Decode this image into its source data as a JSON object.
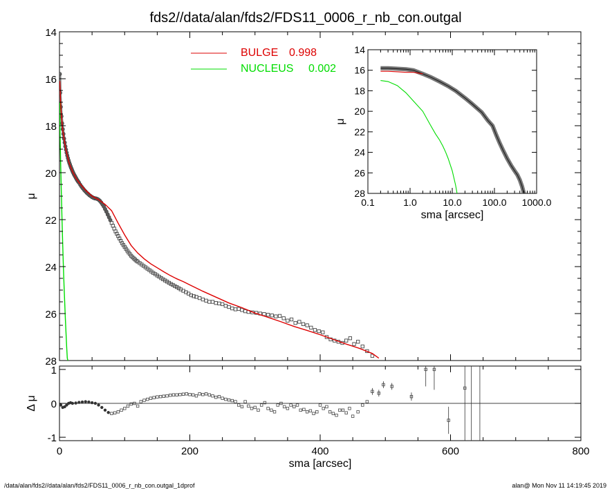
{
  "chart_data": [
    {
      "id": "main-profile",
      "type": "scatter",
      "title": "fds2//data/alan/fds2/FDS11_0006_r_nb_con.outgal",
      "xlabel": "sma [arcsec]",
      "ylabel": "μ",
      "xlim": [
        0,
        800
      ],
      "ylim": [
        28,
        14
      ],
      "xticks": [
        0,
        200,
        400,
        600,
        800
      ],
      "yticks": [
        14,
        16,
        18,
        20,
        22,
        24,
        26,
        28
      ],
      "legend": [
        {
          "name": "BULGE",
          "value": "0.998",
          "color": "#dd0000"
        },
        {
          "name": "NUCLEUS",
          "value": "0.002",
          "color": "#00dd00"
        }
      ],
      "series": [
        {
          "name": "data",
          "style": "open-squares",
          "color": "#555555",
          "x": [
            0.5,
            1,
            2,
            3,
            4,
            5,
            6,
            7,
            8,
            9,
            10,
            11,
            12,
            13,
            14,
            15,
            16,
            17,
            18,
            19,
            20,
            21,
            22,
            23,
            24,
            25,
            26,
            27,
            28,
            29,
            30,
            32,
            34,
            36,
            38,
            40,
            42,
            44,
            46,
            48,
            50,
            52,
            54,
            56,
            58,
            60,
            62,
            64,
            66,
            68,
            70,
            72,
            74,
            76,
            78,
            80,
            82,
            84,
            86,
            88,
            90,
            92,
            94,
            96,
            98,
            100,
            102,
            104,
            106,
            108,
            110,
            112,
            114,
            116,
            118,
            120,
            123,
            126,
            129,
            132,
            135,
            138,
            141,
            144,
            147,
            150,
            153,
            156,
            159,
            162,
            165,
            168,
            171,
            174,
            177,
            180,
            183,
            186,
            190,
            194,
            198,
            202,
            206,
            210,
            215,
            220,
            225,
            230,
            235,
            240,
            245,
            250,
            255,
            260,
            265,
            270,
            275,
            280,
            285,
            290,
            296,
            302,
            308,
            314,
            320,
            326,
            332,
            338,
            344,
            350,
            356,
            362,
            368,
            374,
            380,
            386,
            392,
            398,
            404,
            410,
            416,
            422,
            428,
            434,
            440,
            446,
            452,
            458,
            465,
            472,
            480
          ],
          "y": [
            15.8,
            16.6,
            17.2,
            17.6,
            17.9,
            18.15,
            18.35,
            18.55,
            18.72,
            18.88,
            19.02,
            19.15,
            19.27,
            19.38,
            19.48,
            19.57,
            19.65,
            19.73,
            19.8,
            19.87,
            19.94,
            20.0,
            20.06,
            20.11,
            20.16,
            20.21,
            20.26,
            20.31,
            20.35,
            20.39,
            20.43,
            20.52,
            20.6,
            20.67,
            20.74,
            20.8,
            20.86,
            20.91,
            20.96,
            21.0,
            21.04,
            21.07,
            21.09,
            21.1,
            21.12,
            21.15,
            21.2,
            21.27,
            21.35,
            21.44,
            21.55,
            21.66,
            21.78,
            21.9,
            22.02,
            22.14,
            22.26,
            22.38,
            22.5,
            22.6,
            22.7,
            22.8,
            22.9,
            23.0,
            23.08,
            23.16,
            23.24,
            23.32,
            23.4,
            23.47,
            23.54,
            23.6,
            23.65,
            23.7,
            23.75,
            23.79,
            23.85,
            23.91,
            23.97,
            24.03,
            24.09,
            24.15,
            24.21,
            24.27,
            24.32,
            24.38,
            24.43,
            24.49,
            24.54,
            24.59,
            24.64,
            24.69,
            24.74,
            24.78,
            24.83,
            24.87,
            24.92,
            24.97,
            25.03,
            25.09,
            25.15,
            25.22,
            25.26,
            25.29,
            25.34,
            25.4,
            25.45,
            25.5,
            25.5,
            25.55,
            25.57,
            25.6,
            25.67,
            25.72,
            25.78,
            25.82,
            25.8,
            25.85,
            25.9,
            25.93,
            25.95,
            25.97,
            26.0,
            26.02,
            26.05,
            26.08,
            26.12,
            26.1,
            26.2,
            26.3,
            26.25,
            26.4,
            26.35,
            26.45,
            26.5,
            26.6,
            26.7,
            26.75,
            26.8,
            27.0,
            27.1,
            27.15,
            27.2,
            27.25,
            27.15,
            27.05,
            27.3,
            27.2,
            27.4,
            27.6,
            27.8
          ]
        },
        {
          "name": "BULGE",
          "style": "line",
          "color": "#dd0000",
          "x": [
            0.5,
            2,
            5,
            10,
            15,
            20,
            25,
            30,
            40,
            50,
            60,
            70,
            80,
            90,
            100,
            110,
            120,
            130,
            140,
            150,
            160,
            170,
            180,
            190,
            200,
            220,
            240,
            260,
            280,
            300,
            320,
            340,
            360,
            380,
            400,
            420,
            440,
            460,
            480,
            490
          ],
          "y": [
            16.1,
            17.2,
            18.2,
            19.05,
            19.6,
            19.95,
            20.22,
            20.42,
            20.75,
            21.0,
            21.15,
            21.35,
            21.62,
            22.15,
            22.65,
            23.1,
            23.42,
            23.67,
            23.88,
            24.05,
            24.22,
            24.38,
            24.52,
            24.64,
            24.78,
            25.05,
            25.3,
            25.55,
            25.75,
            25.98,
            26.16,
            26.35,
            26.55,
            26.72,
            26.9,
            27.1,
            27.3,
            27.48,
            27.7,
            27.9
          ]
        },
        {
          "name": "NUCLEUS",
          "style": "line",
          "color": "#00dd00",
          "x": [
            0.2,
            1,
            2,
            3,
            4,
            5,
            6,
            7,
            8,
            9,
            10,
            11,
            12,
            13
          ],
          "y": [
            17.0,
            18.5,
            19.8,
            21.0,
            22.1,
            23.1,
            24.0,
            24.8,
            25.5,
            26.2,
            26.8,
            27.4,
            27.9,
            28.0
          ]
        }
      ]
    },
    {
      "id": "residuals",
      "type": "scatter",
      "xlabel": "sma [arcsec]",
      "ylabel": "Δ μ",
      "xlim": [
        0,
        800
      ],
      "ylim": [
        -1.1,
        1.1
      ],
      "xticks": [
        0,
        200,
        400,
        600,
        800
      ],
      "yticks": [
        -1,
        0,
        1
      ],
      "x": [
        2,
        5,
        8,
        11,
        14,
        17,
        20,
        25,
        30,
        35,
        40,
        45,
        50,
        55,
        60,
        65,
        70,
        75,
        80,
        85,
        90,
        95,
        100,
        105,
        110,
        115,
        120,
        125,
        130,
        135,
        140,
        145,
        150,
        155,
        160,
        165,
        170,
        175,
        180,
        185,
        190,
        195,
        200,
        205,
        210,
        215,
        220,
        225,
        230,
        235,
        240,
        245,
        250,
        255,
        260,
        265,
        270,
        275,
        280,
        285,
        290,
        295,
        300,
        305,
        310,
        315,
        320,
        325,
        330,
        335,
        340,
        345,
        350,
        355,
        360,
        365,
        370,
        375,
        380,
        385,
        390,
        395,
        400,
        405,
        410,
        415,
        420,
        425,
        430,
        435,
        440,
        445,
        450,
        458,
        465,
        472,
        480,
        490,
        497,
        510,
        540,
        562,
        575,
        597,
        622
      ],
      "y": [
        -0.05,
        -0.12,
        -0.1,
        -0.05,
        0.0,
        0.02,
        0.0,
        0.01,
        0.03,
        0.04,
        0.05,
        0.04,
        0.02,
        0.0,
        -0.05,
        -0.12,
        -0.2,
        -0.27,
        -0.3,
        -0.28,
        -0.25,
        -0.2,
        -0.15,
        -0.08,
        -0.02,
        0.0,
        -0.08,
        0.05,
        0.09,
        0.12,
        0.15,
        0.17,
        0.19,
        0.2,
        0.21,
        0.22,
        0.24,
        0.25,
        0.25,
        0.26,
        0.27,
        0.28,
        0.26,
        0.25,
        0.22,
        0.28,
        0.26,
        0.28,
        0.25,
        0.22,
        0.18,
        0.2,
        0.15,
        0.12,
        0.1,
        0.08,
        0.05,
        -0.05,
        -0.1,
        0.05,
        -0.08,
        -0.15,
        -0.12,
        -0.2,
        -0.05,
        0.02,
        -0.15,
        -0.2,
        -0.25,
        -0.05,
        0.0,
        -0.1,
        -0.15,
        -0.05,
        -0.1,
        -0.05,
        -0.2,
        -0.18,
        -0.25,
        -0.22,
        -0.3,
        -0.25,
        -0.05,
        -0.15,
        -0.1,
        -0.25,
        -0.3,
        -0.35,
        -0.2,
        -0.2,
        -0.28,
        -0.15,
        -0.38,
        -0.25,
        -0.05,
        0.05,
        0.35,
        0.3,
        0.55,
        0.5,
        0.2,
        1.0,
        1.0,
        -0.5,
        0.45
      ],
      "err": [
        0,
        0,
        0,
        0,
        0,
        0,
        0,
        0,
        0,
        0,
        0,
        0,
        0,
        0,
        0,
        0,
        0,
        0,
        0,
        0,
        0,
        0,
        0,
        0,
        0,
        0,
        0,
        0,
        0,
        0,
        0,
        0,
        0,
        0,
        0,
        0,
        0,
        0,
        0,
        0,
        0,
        0,
        0,
        0,
        0,
        0,
        0,
        0,
        0,
        0,
        0,
        0,
        0,
        0,
        0,
        0,
        0,
        0,
        0,
        0,
        0,
        0,
        0,
        0,
        0,
        0,
        0,
        0,
        0,
        0,
        0,
        0,
        0,
        0,
        0,
        0,
        0,
        0,
        0,
        0,
        0,
        0,
        0,
        0,
        0,
        0,
        0,
        0,
        0,
        0,
        0,
        0,
        0,
        0,
        0,
        0,
        0.1,
        0.1,
        0.1,
        0.1,
        0.12,
        0.5,
        0.6,
        0.4,
        2.0
      ],
      "vlines": [
        632,
        645
      ]
    },
    {
      "id": "inset-profile",
      "type": "line",
      "xlabel": "sma [arcsec]",
      "ylabel": "μ",
      "xscale": "log",
      "xlim": [
        0.1,
        1000
      ],
      "ylim": [
        28,
        14
      ],
      "xtick_labels": [
        "0.1",
        "1.0",
        "10.0",
        "100.0",
        "1000.0"
      ],
      "yticks": [
        14,
        16,
        18,
        20,
        22,
        24,
        26,
        28
      ],
      "series": [
        {
          "name": "data",
          "color": "#555555",
          "x": [
            0.2,
            0.3,
            0.5,
            0.8,
            1.2,
            2,
            3,
            5,
            8,
            12,
            20,
            30,
            50,
            70,
            90,
            110,
            130,
            160,
            200,
            250,
            300,
            350,
            400,
            450,
            500
          ],
          "y": [
            15.8,
            15.8,
            15.85,
            15.9,
            16.0,
            16.35,
            16.65,
            17.1,
            17.55,
            18.0,
            18.7,
            19.3,
            20.1,
            20.9,
            21.4,
            22.3,
            23.0,
            23.8,
            24.6,
            25.3,
            25.8,
            26.2,
            26.7,
            27.3,
            28.0
          ]
        },
        {
          "name": "BULGE",
          "color": "#dd0000",
          "x": [
            0.2,
            0.3,
            0.5,
            0.8,
            1.2,
            2
          ],
          "y": [
            16.1,
            16.1,
            16.15,
            16.2,
            16.2,
            16.35
          ]
        },
        {
          "name": "NUCLEUS",
          "color": "#00dd00",
          "x": [
            0.2,
            0.3,
            0.5,
            0.8,
            1.2,
            2,
            3,
            4,
            5,
            6,
            7,
            8,
            10,
            12,
            13
          ],
          "y": [
            17.0,
            17.1,
            17.5,
            18.2,
            19.0,
            20.0,
            21.3,
            22.2,
            22.8,
            23.4,
            24.0,
            24.6,
            25.8,
            27.2,
            28.0
          ]
        }
      ]
    }
  ],
  "footer": {
    "left": "/data/alan/fds2//data/alan/fds2/FDS11_0006_r_nb_con.outgal_1dprof",
    "right": "alan@  Mon Nov 11 14:19:45 2019"
  }
}
